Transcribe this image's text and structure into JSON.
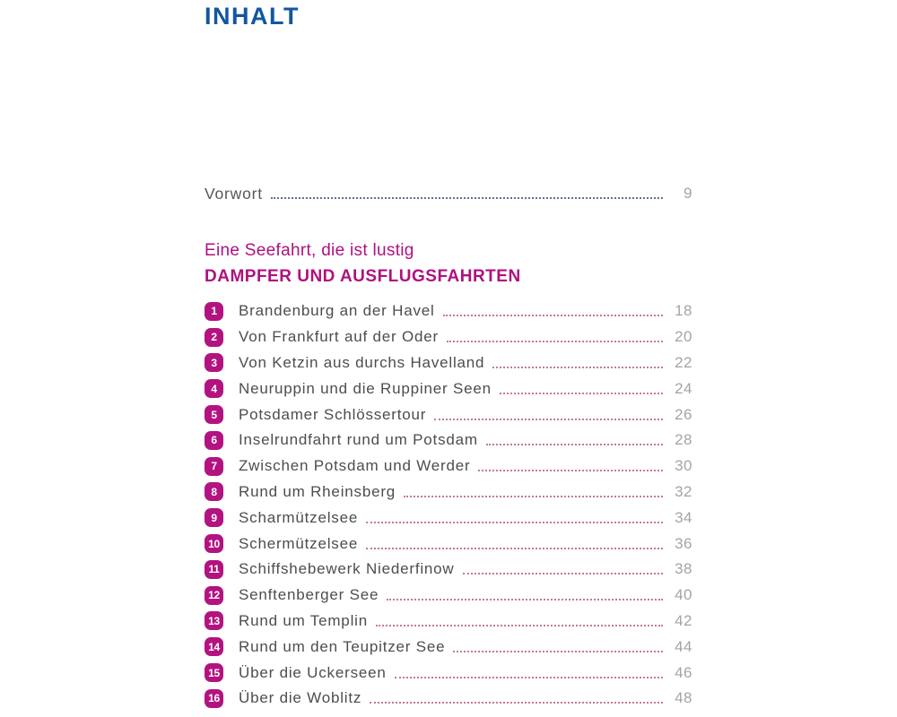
{
  "page": {
    "title": "INHALT"
  },
  "colors": {
    "title_blue": "#1356a0",
    "magenta": "#ae1180",
    "badge_magenta": "#b31380",
    "entry_text": "#4c4d51",
    "front_text": "#55565a",
    "page_number": "#a3a4a9",
    "leader_pink": "#c4799f",
    "leader_blue": "#5e7090"
  },
  "toc": {
    "front_matter": [
      {
        "label": "Vorwort",
        "page": "9"
      }
    ],
    "section": {
      "subtitle": "Eine Seefahrt, die ist lustig",
      "title": "DAMPFER UND AUSFLUGSFAHRTEN"
    },
    "entries": [
      {
        "num": "1",
        "label": "Brandenburg an der Havel",
        "page": "18"
      },
      {
        "num": "2",
        "label": "Von Frankfurt auf der Oder",
        "page": "20"
      },
      {
        "num": "3",
        "label": "Von Ketzin aus durchs Havelland",
        "page": "22"
      },
      {
        "num": "4",
        "label": "Neuruppin und die Ruppiner Seen",
        "page": "24"
      },
      {
        "num": "5",
        "label": "Potsdamer Schlössertour",
        "page": "26"
      },
      {
        "num": "6",
        "label": "Inselrundfahrt rund um Potsdam",
        "page": "28"
      },
      {
        "num": "7",
        "label": "Zwischen Potsdam und Werder",
        "page": "30"
      },
      {
        "num": "8",
        "label": "Rund um Rheinsberg",
        "page": "32"
      },
      {
        "num": "9",
        "label": "Scharmützelsee",
        "page": "34"
      },
      {
        "num": "10",
        "label": "Schermützelsee",
        "page": "36"
      },
      {
        "num": "11",
        "label": "Schiffshebewerk Niederfinow",
        "page": "38"
      },
      {
        "num": "12",
        "label": "Senftenberger See",
        "page": "40"
      },
      {
        "num": "13",
        "label": "Rund um Templin",
        "page": "42"
      },
      {
        "num": "14",
        "label": "Rund um den Teupitzer See",
        "page": "44"
      },
      {
        "num": "15",
        "label": "Über die Uckerseen",
        "page": "46"
      },
      {
        "num": "16",
        "label": "Über die Woblitz",
        "page": "48"
      }
    ]
  }
}
